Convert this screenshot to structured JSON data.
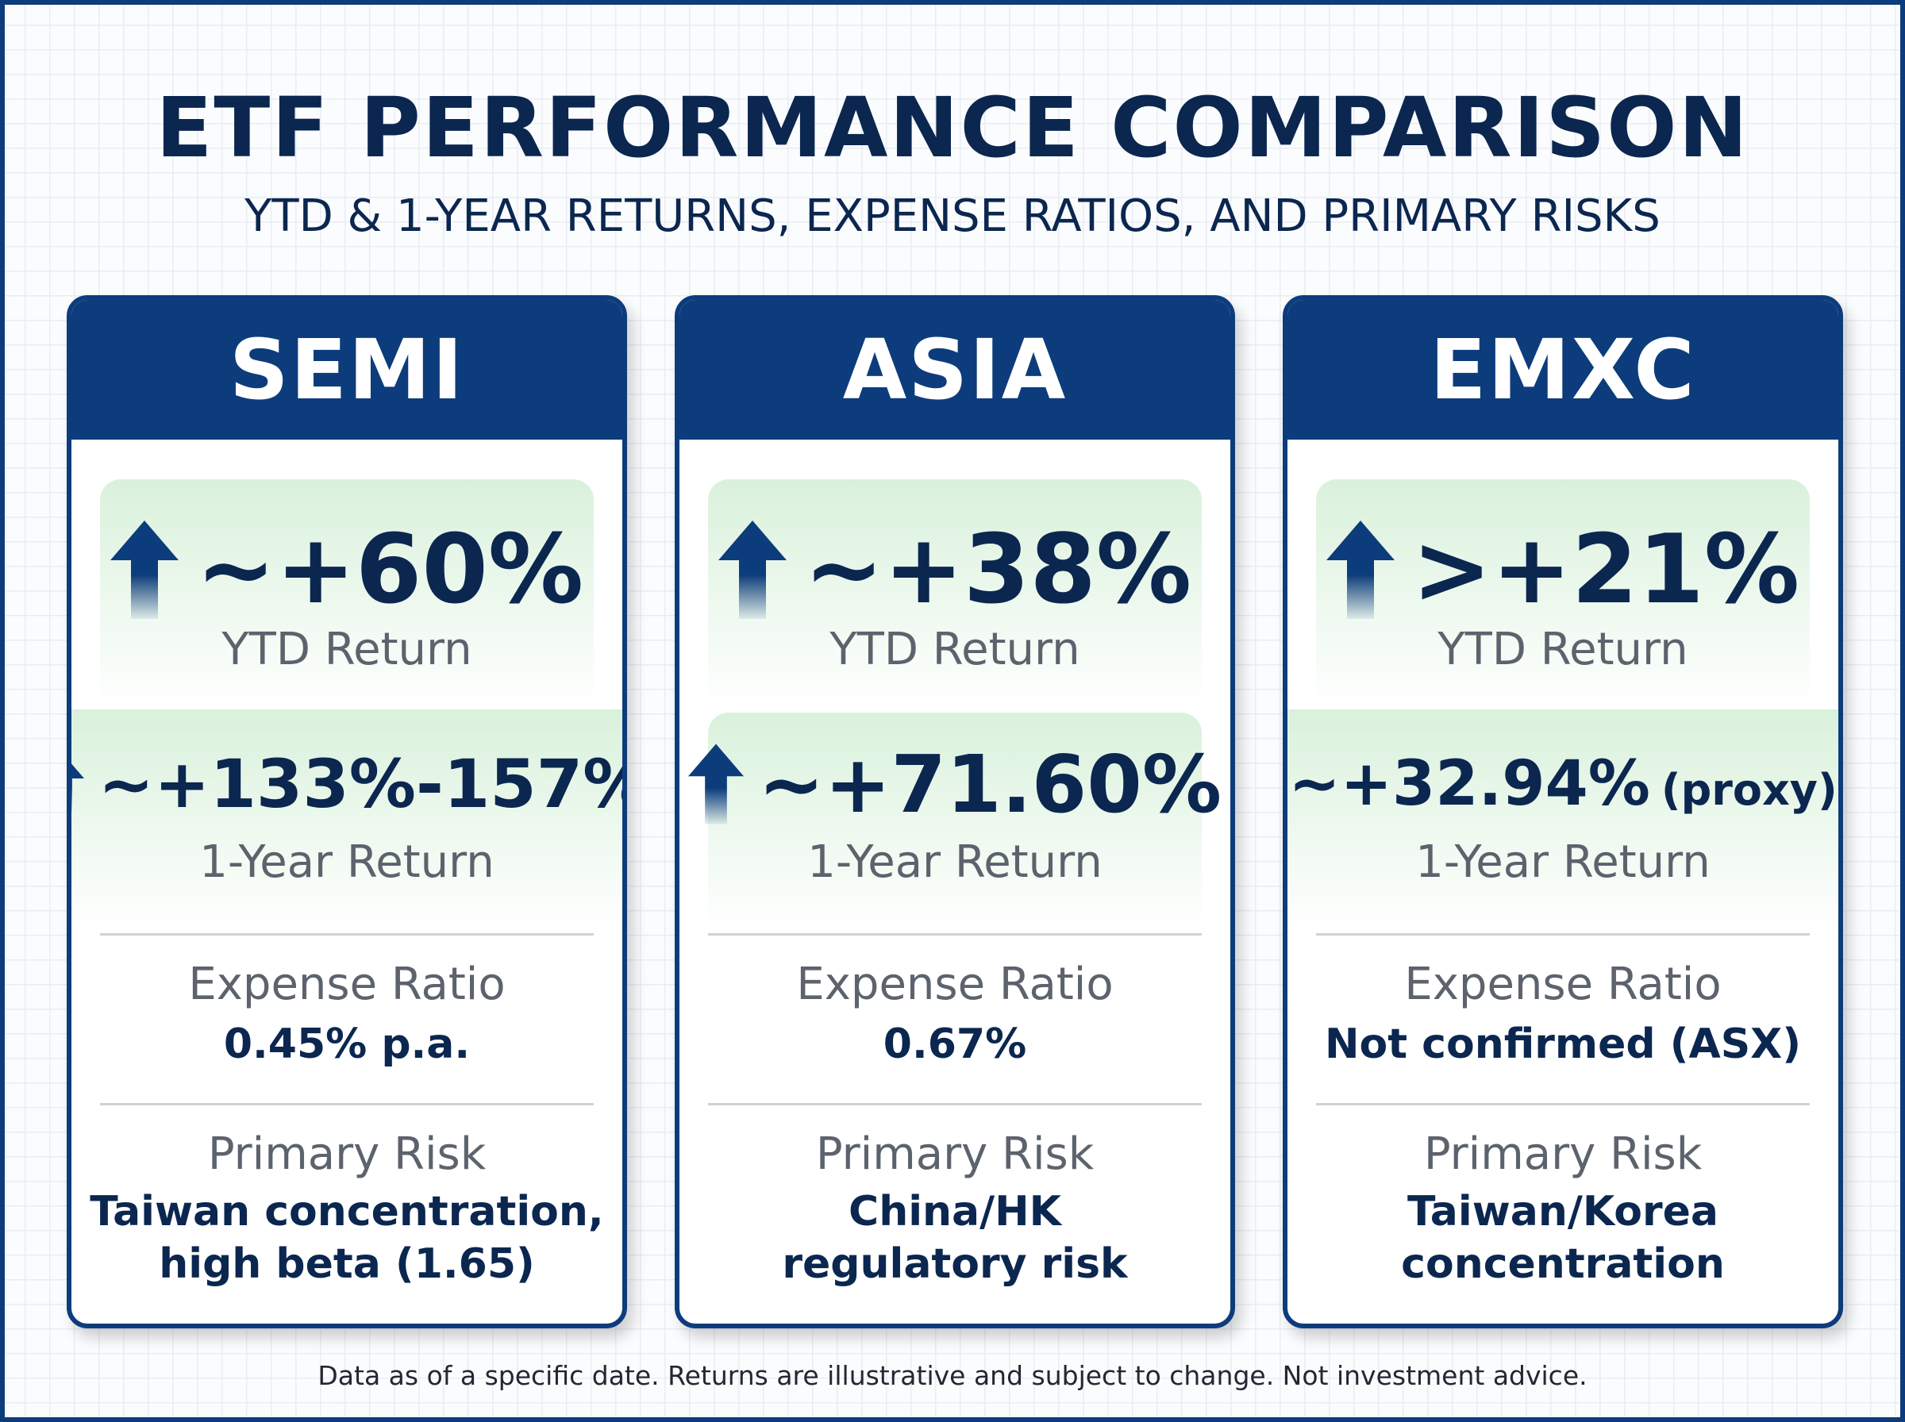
{
  "title": "ETF PERFORMANCE COMPARISON",
  "subtitle": "YTD & 1-YEAR RETURNS, EXPENSE RATIOS, AND PRIMARY RISKS",
  "labels": {
    "ytd": "YTD Return",
    "one_year": "1-Year Return",
    "expense": "Expense Ratio",
    "risk": "Primary Risk"
  },
  "cards": [
    {
      "name": "SEMI",
      "ytd": "~+60%",
      "one_year": "~+133%-157%",
      "expense": "0.45% p.a.",
      "risk": "Taiwan concentration, high beta (1.65)"
    },
    {
      "name": "ASIA",
      "ytd": "~+38%",
      "one_year": "~+71.60%",
      "expense": "0.67%",
      "risk": "China/HK regulatory risk"
    },
    {
      "name": "EMXC",
      "ytd": ">+21%",
      "one_year": "~+32.94%",
      "one_year_note": "(proxy)",
      "expense": "Not confirmed (ASX)",
      "risk": "Taiwan/Korea concentration"
    }
  ],
  "footnote": "Data as of a specific date. Returns are illustrative and subject to change. Not investment advice.",
  "colors": {
    "navy": "#0d3c7c",
    "text_dark": "#0b2750",
    "label_gray": "#5c636d",
    "panel_green": "#d9f1dc"
  },
  "icons": [
    "arrow-up-icon"
  ]
}
